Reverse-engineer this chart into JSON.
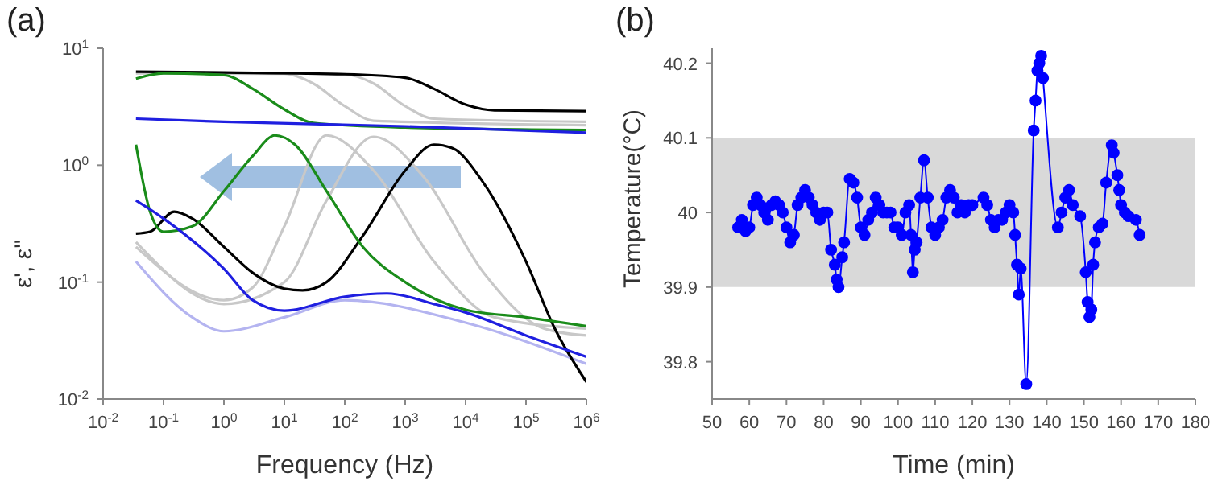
{
  "chart_data": [
    {
      "type": "line",
      "title": "(a)",
      "xlabel": "Frequency (Hz)",
      "ylabel": "ε', ε''",
      "log": "xy",
      "marker": "none",
      "xlim": [
        0.01,
        1000000
      ],
      "ylim": [
        0.01,
        10
      ],
      "xticks": [
        {
          "value": 0.01,
          "label": "10$^{-2}$"
        },
        {
          "value": 0.1,
          "label": "10$^{-1}$"
        },
        {
          "value": 1,
          "label": "10$^{0}$"
        },
        {
          "value": 10,
          "label": "10$^{1}$"
        },
        {
          "value": 100,
          "label": "10$^{2}$"
        },
        {
          "value": 1000,
          "label": "10$^{3}$"
        },
        {
          "value": 10000,
          "label": "10$^{4}$"
        },
        {
          "value": 100000,
          "label": "10$^{5}$"
        },
        {
          "value": 1000000,
          "label": "10$^{6}$"
        }
      ],
      "yticks": [
        {
          "value": 0.01,
          "label": "10$^{-2}$"
        },
        {
          "value": 0.1,
          "label": "10$^{-1}$"
        },
        {
          "value": 1,
          "label": "10$^{0}$"
        },
        {
          "value": 10,
          "label": "10$^{1}$"
        }
      ],
      "series": [
        {
          "color": "#c8c8c8",
          "x": [
            0.035,
            10,
            30,
            100,
            300,
            1000000
          ],
          "values": [
            6.1,
            6.05,
            5.0,
            3.2,
            2.4,
            2.2
          ]
        },
        {
          "color": "#c8c8c8",
          "x": [
            20,
            100,
            300,
            1000,
            3000,
            1000000
          ],
          "values": [
            6.1,
            6.0,
            5.0,
            3.2,
            2.5,
            2.35
          ]
        },
        {
          "color": "#c8c8c8",
          "x": [
            0.035,
            1,
            3,
            10,
            50,
            300,
            3000,
            30000,
            1000000
          ],
          "values": [
            0.2,
            0.07,
            0.09,
            0.3,
            1.8,
            0.9,
            0.15,
            0.05,
            0.04
          ]
        },
        {
          "color": "#c8c8c8",
          "x": [
            0.035,
            1,
            10,
            50,
            300,
            2000,
            20000,
            200000,
            1000000
          ],
          "values": [
            0.22,
            0.065,
            0.1,
            0.5,
            1.75,
            0.8,
            0.12,
            0.04,
            0.035
          ]
        },
        {
          "color": "#b4b4f0",
          "x": [
            0.035,
            0.3,
            1,
            10,
            100,
            10000,
            1000000
          ],
          "values": [
            0.15,
            0.05,
            0.038,
            0.05,
            0.07,
            0.045,
            0.02
          ]
        },
        {
          "color": "#000000",
          "x": [
            0.035,
            1,
            100,
            1000,
            3000,
            10000,
            30000,
            1000000
          ],
          "values": [
            6.3,
            6.2,
            6.0,
            5.6,
            4.5,
            3.3,
            2.95,
            2.9
          ]
        },
        {
          "color": "#000000",
          "x": [
            0.035,
            0.06,
            0.15,
            0.3,
            1,
            3,
            10,
            20,
            50,
            200,
            1000,
            3000,
            6000,
            20000,
            100000,
            300000,
            1000000
          ],
          "values": [
            0.26,
            0.27,
            0.4,
            0.35,
            0.2,
            0.12,
            0.088,
            0.085,
            0.1,
            0.25,
            0.9,
            1.5,
            1.4,
            0.7,
            0.15,
            0.04,
            0.014
          ]
        },
        {
          "color": "#1a8c1a",
          "x": [
            0.035,
            0.1,
            1,
            3,
            10,
            30,
            1000,
            1000000
          ],
          "values": [
            5.5,
            6.1,
            5.9,
            4.5,
            3.0,
            2.3,
            2.1,
            2.0
          ]
        },
        {
          "color": "#1a8c1a",
          "x": [
            0.035,
            0.06,
            0.1,
            0.3,
            1,
            3,
            7,
            15,
            50,
            200,
            1000,
            10000,
            100000,
            1000000
          ],
          "values": [
            1.5,
            0.4,
            0.27,
            0.3,
            0.6,
            1.2,
            1.8,
            1.5,
            0.6,
            0.2,
            0.1,
            0.058,
            0.05,
            0.042
          ]
        },
        {
          "color": "#1f1fe0",
          "x": [
            0.035,
            1,
            1000,
            1000000
          ],
          "values": [
            2.5,
            2.35,
            2.15,
            1.9
          ]
        },
        {
          "color": "#1f1fe0",
          "x": [
            0.035,
            0.1,
            1,
            3,
            10,
            100,
            500,
            3000,
            10000,
            100000,
            1000000
          ],
          "values": [
            0.5,
            0.35,
            0.13,
            0.07,
            0.057,
            0.075,
            0.08,
            0.065,
            0.055,
            0.035,
            0.023
          ]
        }
      ]
    },
    {
      "type": "line",
      "title": "(b)",
      "xlabel": "Time (min)",
      "ylabel": "Temperature(°C)",
      "marker": "circle",
      "xlim": [
        50,
        180
      ],
      "ylim": [
        39.75,
        40.22
      ],
      "xticks": [
        50,
        60,
        70,
        80,
        90,
        100,
        110,
        120,
        130,
        140,
        150,
        160,
        170,
        180
      ],
      "yticks": [
        39.8,
        39.9,
        40,
        40.1,
        40.2
      ],
      "bands": [
        {
          "axis": "y",
          "from": 39.9,
          "to": 40.1,
          "color": "#d9d9d9"
        }
      ],
      "series": [
        {
          "color": "#0000ff",
          "x": [
            57,
            58,
            59,
            60,
            61,
            62,
            63,
            64,
            65,
            66,
            67,
            68,
            69,
            70,
            71,
            72,
            73,
            74,
            75,
            76,
            77,
            78,
            79,
            80,
            81,
            82,
            83,
            83.5,
            84,
            85,
            85.5,
            87,
            88,
            89,
            90,
            91,
            92,
            93,
            94,
            95,
            96,
            97,
            98,
            99,
            100,
            101,
            102,
            103,
            103.5,
            104,
            104.5,
            105,
            106,
            107,
            108,
            109,
            110,
            111,
            112,
            113,
            114,
            115,
            116,
            117,
            118,
            119,
            120,
            123,
            124,
            125,
            126,
            127,
            128,
            129,
            130,
            131,
            131.5,
            132,
            132.5,
            133,
            134.5,
            136.5,
            137,
            137.5,
            138,
            138.5,
            139,
            143,
            144,
            145,
            146,
            147,
            149,
            150.5,
            151,
            151.5,
            152,
            152.5,
            153,
            154,
            155,
            156,
            157.5,
            158,
            159,
            159.5,
            160,
            161,
            162,
            164,
            165
          ],
          "values": [
            39.98,
            39.99,
            39.975,
            39.98,
            40.01,
            40.02,
            40.01,
            40.0,
            39.99,
            40.01,
            40.015,
            40.01,
            40.0,
            39.98,
            39.96,
            39.97,
            40.01,
            40.02,
            40.03,
            40.02,
            40.01,
            40.0,
            39.99,
            40.0,
            40.0,
            39.95,
            39.93,
            39.91,
            39.9,
            39.94,
            39.96,
            40.045,
            40.04,
            40.02,
            39.98,
            39.97,
            39.99,
            40.0,
            40.02,
            40.01,
            40.0,
            40.0,
            40.0,
            39.98,
            39.98,
            39.97,
            40.0,
            40.01,
            39.97,
            39.92,
            39.95,
            39.96,
            40.02,
            40.07,
            40.02,
            39.98,
            39.97,
            39.98,
            39.99,
            40.02,
            40.03,
            40.02,
            40.0,
            40.01,
            40.0,
            40.01,
            40.01,
            40.02,
            40.01,
            39.99,
            39.98,
            39.99,
            39.99,
            40.0,
            40.01,
            40.0,
            39.97,
            39.93,
            39.89,
            39.925,
            39.77,
            40.11,
            40.15,
            40.19,
            40.2,
            40.21,
            40.18,
            39.98,
            40.0,
            40.02,
            40.03,
            40.01,
            39.995,
            39.92,
            39.88,
            39.86,
            39.87,
            39.93,
            39.96,
            39.98,
            39.985,
            40.04,
            40.09,
            40.08,
            40.05,
            40.03,
            40.01,
            40.0,
            39.995,
            39.99,
            39.97
          ]
        }
      ]
    }
  ]
}
